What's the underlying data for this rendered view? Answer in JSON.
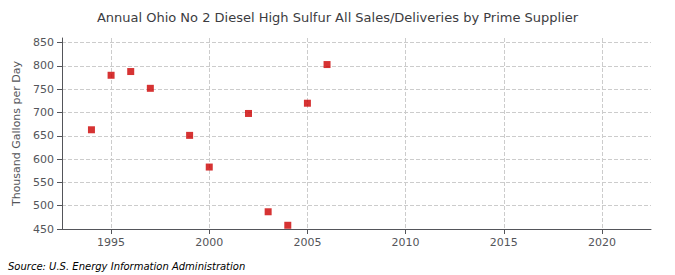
{
  "chart_data": {
    "type": "scatter",
    "title": "Annual Ohio No 2 Diesel High Sulfur All Sales/Deliveries by Prime Supplier",
    "ylabel": "Thousand Gallons per Day",
    "annotations": [
      "Source: U.S. Energy Information Administration"
    ],
    "x": [
      1994,
      1995,
      1996,
      1997,
      1999,
      2000,
      2002,
      2003,
      2004,
      2005,
      2006
    ],
    "values": [
      663,
      780,
      788,
      752,
      651,
      583,
      698,
      487,
      458,
      720,
      803
    ],
    "color": "#cc0000",
    "marker": "square",
    "xlim": [
      1992.5,
      2022.5
    ],
    "xticks": [
      1995,
      2000,
      2005,
      2010,
      2015,
      2020
    ],
    "ylim": [
      450,
      860
    ],
    "yticks": [
      450,
      500,
      550,
      600,
      650,
      700,
      750,
      800,
      850
    ],
    "grid": true
  }
}
